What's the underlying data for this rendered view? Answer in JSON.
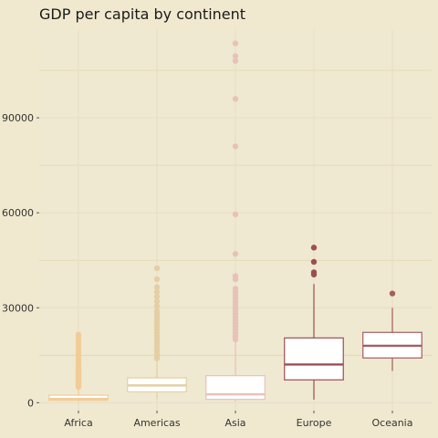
{
  "chart_data": {
    "type": "boxplot",
    "title": "GDP per capita by continent",
    "xlabel": "",
    "ylabel": "",
    "ylim": [
      -2500,
      118000
    ],
    "y_ticks": [
      0,
      30000,
      60000,
      90000
    ],
    "y_tick_labels": [
      "0",
      "30000",
      "60000",
      "90000"
    ],
    "grid": true,
    "legend": "none",
    "categories": [
      "Africa",
      "Americas",
      "Asia",
      "Europe",
      "Oceania"
    ],
    "series": [
      {
        "category": "Africa",
        "whisker_low": 241,
        "q1": 761,
        "median": 1192,
        "q3": 2377,
        "whisker_high": 4800,
        "color": "#f2cc97",
        "outliers": [
          5000,
          5400,
          5800,
          6200,
          6600,
          7000,
          7400,
          7800,
          8200,
          8600,
          9000,
          9500,
          10000,
          10500,
          11000,
          11500,
          12000,
          12500,
          13000,
          14000,
          15000,
          16000,
          17000,
          18000,
          19000,
          20000,
          21000,
          21500
        ]
      },
      {
        "category": "Americas",
        "whisker_low": 1200,
        "q1": 3428,
        "median": 5466,
        "q3": 7830,
        "whisker_high": 13400,
        "color": "#e4cfa5",
        "outliers": [
          14000,
          14700,
          15400,
          16200,
          17000,
          18000,
          19000,
          20000,
          21000,
          22000,
          23000,
          24000,
          25000,
          26000,
          27000,
          28000,
          29000,
          30500,
          32000,
          33500,
          35000,
          36500,
          39000,
          42500
        ]
      },
      {
        "category": "Asia",
        "whisker_low": 331,
        "q1": 1057,
        "median": 2647,
        "q3": 8549,
        "whisker_high": 19500,
        "color": "#e8c2b8",
        "outliers": [
          20000,
          21000,
          22000,
          23000,
          24000,
          25000,
          26000,
          27000,
          28000,
          29000,
          30000,
          31000,
          32000,
          33000,
          34000,
          35000,
          36000,
          39000,
          40000,
          47000,
          59500,
          81000,
          96000,
          108000,
          109500,
          113500
        ]
      },
      {
        "category": "Europe",
        "whisker_low": 973,
        "q1": 7213,
        "median": 12082,
        "q3": 20461,
        "whisker_high": 37500,
        "color": "#9e4e53",
        "outliers": [
          40500,
          41200,
          44500,
          49000
        ]
      },
      {
        "category": "Oceania",
        "whisker_low": 10040,
        "q1": 14142,
        "median": 17983,
        "q3": 22214,
        "whisker_high": 30000,
        "color": "#a55e5f",
        "outliers": [
          34500
        ]
      }
    ]
  }
}
